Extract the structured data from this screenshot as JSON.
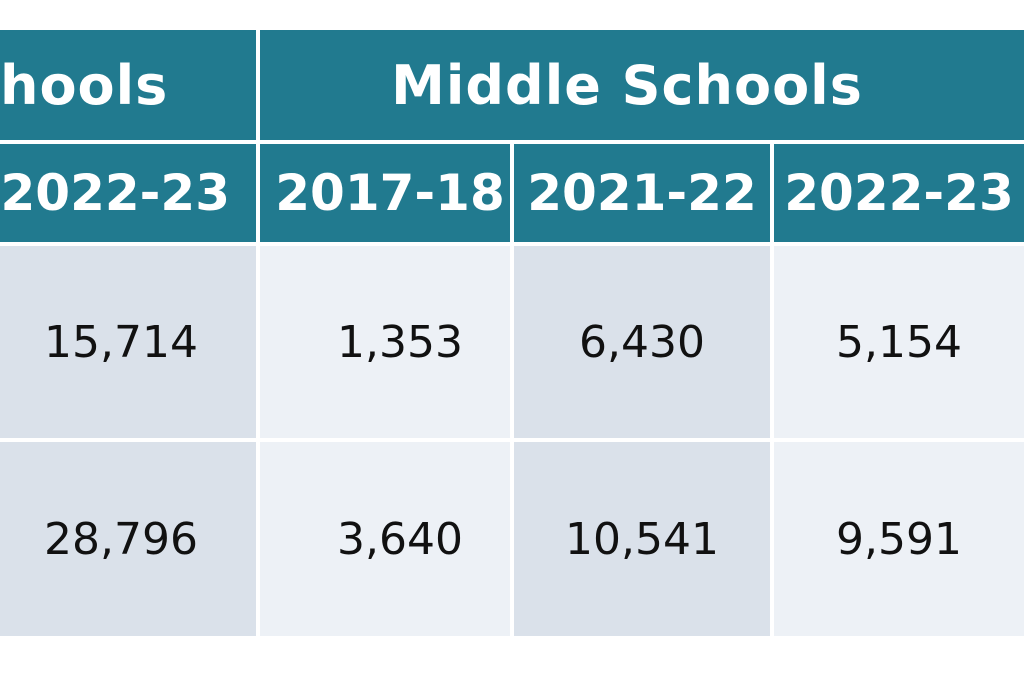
{
  "colors": {
    "header_bg": "#217a8f",
    "header_text": "#ffffff",
    "cell_dark": "#dae1ea",
    "cell_light": "#edf1f6",
    "cell_text": "#111111"
  },
  "chart_data": {
    "type": "table",
    "groups": [
      {
        "label": "hools"
      },
      {
        "label": "Middle Schools"
      }
    ],
    "columns": [
      {
        "group": "hools",
        "year": "2022-23"
      },
      {
        "group": "Middle Schools",
        "year": "2017-18"
      },
      {
        "group": "Middle Schools",
        "year": "2021-22"
      },
      {
        "group": "Middle Schools",
        "year": "2022-23"
      }
    ],
    "rows": [
      [
        "15,714",
        "1,353",
        "6,430",
        "5,154"
      ],
      [
        "28,796",
        "3,640",
        "10,541",
        "9,591"
      ]
    ]
  }
}
